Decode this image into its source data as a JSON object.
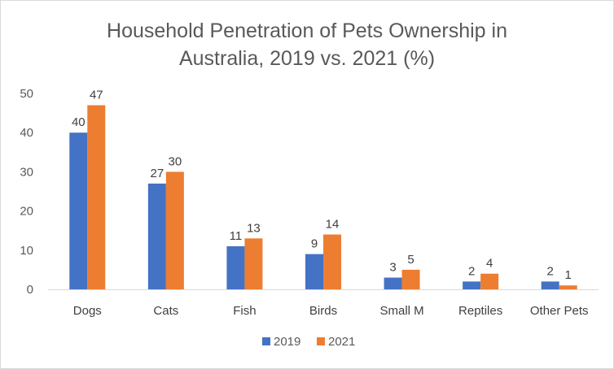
{
  "chart_data": {
    "type": "bar",
    "title_lines": [
      "Household Penetration of Pets Ownership in",
      "Australia, 2019 vs. 2021 (%)"
    ],
    "categories": [
      "Dogs",
      "Cats",
      "Fish",
      "Birds",
      "Small M",
      "Reptiles",
      "Other Pets"
    ],
    "series": [
      {
        "name": "2019",
        "color": "#4472c4",
        "values": [
          40,
          27,
          11,
          9,
          3,
          2,
          2
        ]
      },
      {
        "name": "2021",
        "color": "#ed7d31",
        "values": [
          47,
          30,
          13,
          14,
          5,
          4,
          1
        ]
      }
    ],
    "y_ticks": [
      0,
      10,
      20,
      30,
      40,
      50
    ],
    "ylim": [
      0,
      50
    ],
    "grid": false,
    "data_labels": true,
    "legend_position": "bottom"
  }
}
